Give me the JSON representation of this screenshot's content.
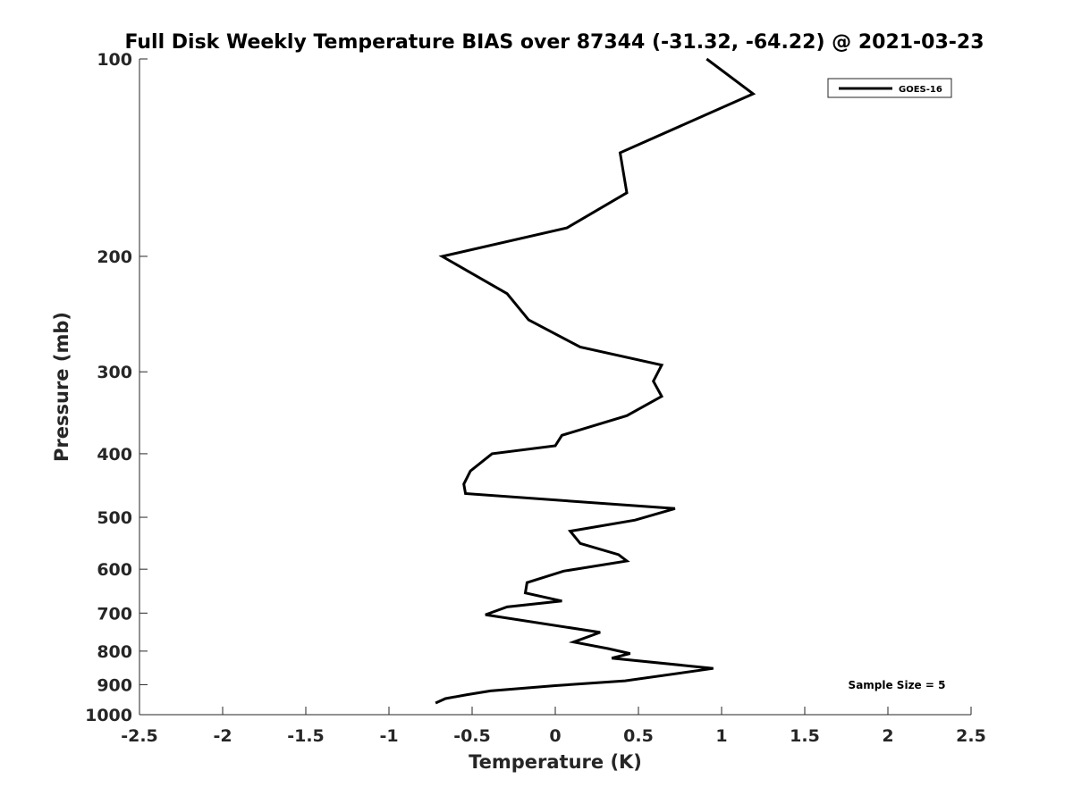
{
  "chart_data": {
    "type": "line",
    "title": "Full Disk Weekly Temperature BIAS over 87344 (-31.32, -64.22) @ 2021-03-23",
    "xlabel": "Temperature (K)",
    "ylabel": "Pressure (mb)",
    "xlim": [
      -2.5,
      2.5
    ],
    "ylim": [
      1000,
      100
    ],
    "y_scale": "log",
    "y_reversed": true,
    "x_ticks": [
      {
        "value": -2.5,
        "label": "-2.5"
      },
      {
        "value": -2,
        "label": "-2"
      },
      {
        "value": -1.5,
        "label": "-1.5"
      },
      {
        "value": -1,
        "label": "-1"
      },
      {
        "value": -0.5,
        "label": "-0.5"
      },
      {
        "value": 0,
        "label": "0"
      },
      {
        "value": 0.5,
        "label": "0.5"
      },
      {
        "value": 1,
        "label": "1"
      },
      {
        "value": 1.5,
        "label": "1.5"
      },
      {
        "value": 2,
        "label": "2"
      },
      {
        "value": 2.5,
        "label": "2.5"
      }
    ],
    "y_ticks": [
      {
        "value": 100,
        "label": "100"
      },
      {
        "value": 200,
        "label": "200"
      },
      {
        "value": 300,
        "label": "300"
      },
      {
        "value": 400,
        "label": "400"
      },
      {
        "value": 500,
        "label": "500"
      },
      {
        "value": 600,
        "label": "600"
      },
      {
        "value": 700,
        "label": "700"
      },
      {
        "value": 800,
        "label": "800"
      },
      {
        "value": 900,
        "label": "900"
      },
      {
        "value": 1000,
        "label": "1000"
      }
    ],
    "grid": false,
    "legend_position": "top-right",
    "series": [
      {
        "name": "GOES-16",
        "color": "#000000",
        "points": [
          {
            "x": 0.91,
            "p": 100
          },
          {
            "x": 1.19,
            "p": 113
          },
          {
            "x": 0.39,
            "p": 139
          },
          {
            "x": 0.43,
            "p": 160
          },
          {
            "x": 0.07,
            "p": 181
          },
          {
            "x": -0.68,
            "p": 200
          },
          {
            "x": -0.29,
            "p": 228
          },
          {
            "x": -0.16,
            "p": 250
          },
          {
            "x": 0.15,
            "p": 275
          },
          {
            "x": 0.64,
            "p": 293
          },
          {
            "x": 0.59,
            "p": 310
          },
          {
            "x": 0.64,
            "p": 327
          },
          {
            "x": 0.43,
            "p": 350
          },
          {
            "x": 0.04,
            "p": 375
          },
          {
            "x": 0.0,
            "p": 389
          },
          {
            "x": -0.38,
            "p": 400
          },
          {
            "x": -0.51,
            "p": 425
          },
          {
            "x": -0.55,
            "p": 445
          },
          {
            "x": -0.54,
            "p": 460
          },
          {
            "x": 0.72,
            "p": 485
          },
          {
            "x": 0.48,
            "p": 505
          },
          {
            "x": 0.09,
            "p": 525
          },
          {
            "x": 0.15,
            "p": 548
          },
          {
            "x": 0.38,
            "p": 570
          },
          {
            "x": 0.43,
            "p": 583
          },
          {
            "x": 0.05,
            "p": 604
          },
          {
            "x": -0.17,
            "p": 629
          },
          {
            "x": -0.18,
            "p": 652
          },
          {
            "x": 0.04,
            "p": 671
          },
          {
            "x": -0.29,
            "p": 685
          },
          {
            "x": -0.42,
            "p": 704
          },
          {
            "x": 0.27,
            "p": 749
          },
          {
            "x": 0.11,
            "p": 775
          },
          {
            "x": 0.32,
            "p": 793
          },
          {
            "x": 0.45,
            "p": 807
          },
          {
            "x": 0.34,
            "p": 820
          },
          {
            "x": 0.95,
            "p": 850
          },
          {
            "x": 0.42,
            "p": 888
          },
          {
            "x": 0.0,
            "p": 903
          },
          {
            "x": -0.39,
            "p": 920
          },
          {
            "x": -0.53,
            "p": 932
          },
          {
            "x": -0.66,
            "p": 945
          },
          {
            "x": -0.72,
            "p": 960
          }
        ]
      }
    ],
    "annotation": "Sample Size = 5"
  }
}
